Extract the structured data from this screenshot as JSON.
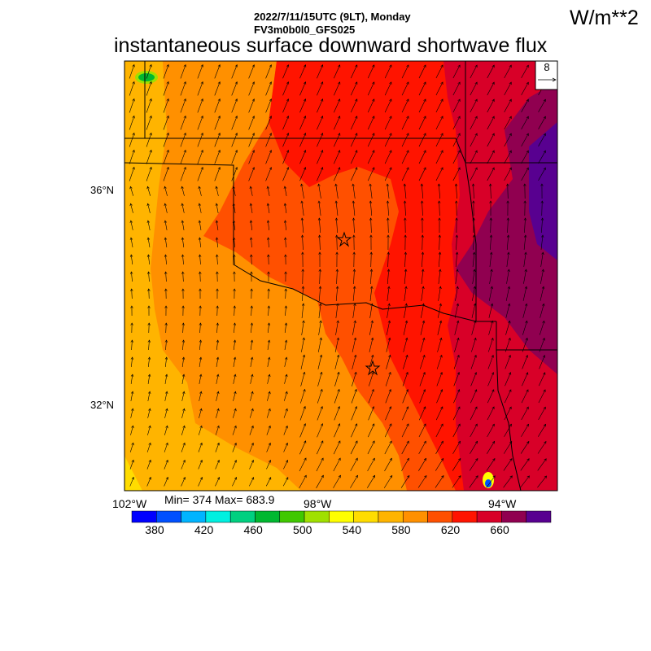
{
  "header": {
    "line1": "2022/7/11/15UTC (9LT), Monday",
    "line2": "FV3m0b0l0_GFS025",
    "title": "instantaneous surface downward shortwave flux",
    "units": "W/m**2"
  },
  "vector_ref": {
    "value": "8"
  },
  "axes": {
    "lat_labels": [
      "36°N",
      "32°N"
    ],
    "lon_labels": [
      "102°W",
      "98°W",
      "94°W"
    ]
  },
  "stats": {
    "text": "Min= 374 Max= 683.9",
    "min": 374,
    "max": 683.9
  },
  "colorbar": {
    "labels": [
      "380",
      "420",
      "460",
      "500",
      "540",
      "580",
      "620",
      "660"
    ],
    "colors": [
      "#0000ff",
      "#0050ff",
      "#00b4ff",
      "#00f0e0",
      "#00d080",
      "#00b830",
      "#40c800",
      "#a0e000",
      "#ffff00",
      "#ffdc00",
      "#ffb400",
      "#ff9000",
      "#ff5000",
      "#ff1400",
      "#d80028",
      "#900050",
      "#580090"
    ]
  }
}
